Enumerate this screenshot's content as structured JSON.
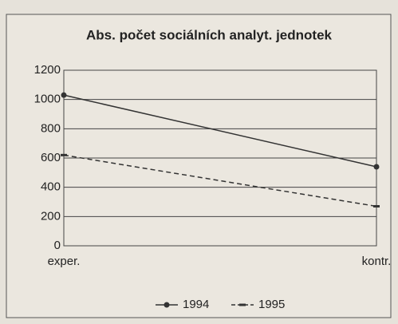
{
  "chart_data": {
    "type": "line",
    "title": "Abs. počet sociálních analyt. jednotek",
    "categories": [
      "exper.",
      "kontr."
    ],
    "series": [
      {
        "name": "1994",
        "color": "#333333",
        "dash": false,
        "values": [
          1030,
          540
        ]
      },
      {
        "name": "1995",
        "color": "#333333",
        "dash": true,
        "values": [
          620,
          270
        ]
      }
    ],
    "ylim": [
      0,
      1200
    ],
    "yticks": [
      0,
      200,
      400,
      600,
      800,
      1000,
      1200
    ],
    "grid": true
  }
}
